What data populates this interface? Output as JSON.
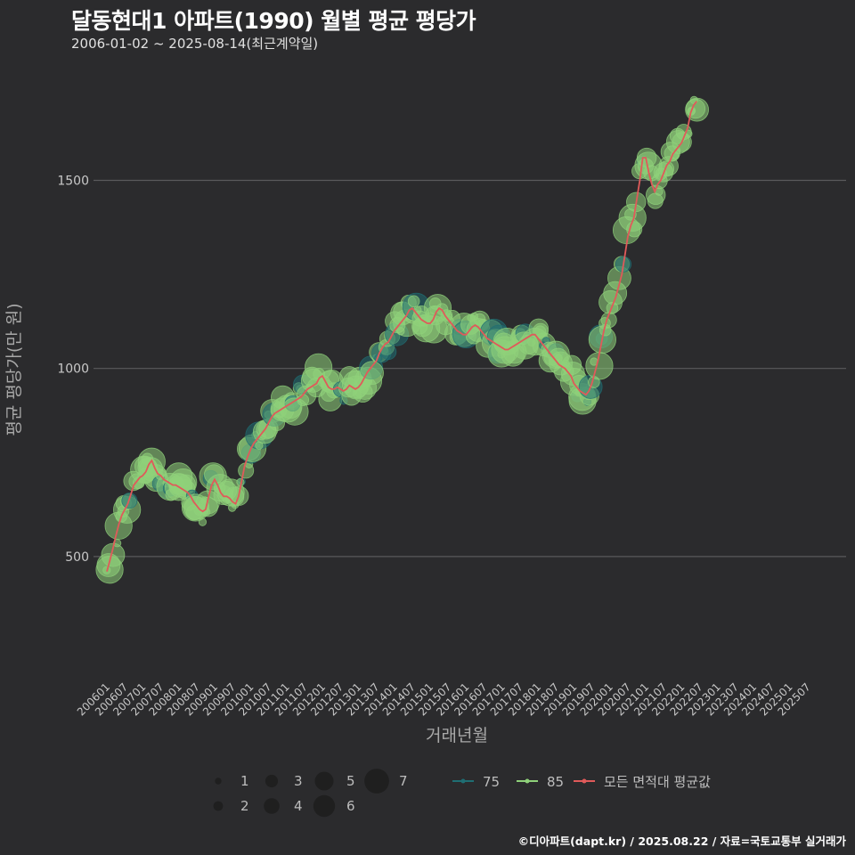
{
  "header": {
    "title": "달동현대1 아파트(1990) 월별 평균 평당가",
    "subtitle": "2006-01-02 ~ 2025-08-14(최근계약일)"
  },
  "footer": {
    "credit": "©디아파트(dapt.kr) / 2025.08.22 / 자료=국토교통부 실거래가"
  },
  "colors": {
    "background": "#2b2b2d",
    "grid": "#5a5a5c",
    "area75": "#1f6e73",
    "area85": "#8fd17a",
    "average": "#e05a5a",
    "text": "#bdbdbd"
  },
  "chart_data": {
    "type": "scatter",
    "title": "달동현대1 아파트(1990) 월별 평균 평당가",
    "xlabel": "거래년월",
    "ylabel": "평균 평당가(만 원)",
    "ylim": [
      180,
      1790
    ],
    "yticks": [
      500,
      1000,
      1500
    ],
    "xticks": [
      "200601",
      "200607",
      "200701",
      "200707",
      "200801",
      "200807",
      "200901",
      "200907",
      "201001",
      "201007",
      "201101",
      "201107",
      "201201",
      "201207",
      "201301",
      "201307",
      "201401",
      "201407",
      "201501",
      "201507",
      "201601",
      "201607",
      "201701",
      "201707",
      "201801",
      "201807",
      "201901",
      "201907",
      "202001",
      "202007",
      "202101",
      "202107",
      "202201",
      "202207",
      "202301",
      "202307",
      "202401",
      "202407",
      "202501",
      "202507"
    ],
    "legend_size": {
      "title": "",
      "values": [
        1,
        2,
        3,
        4,
        5,
        6,
        7
      ]
    },
    "legend_series": [
      {
        "name": "75",
        "color": "#1f6e73"
      },
      {
        "name": "85",
        "color": "#8fd17a"
      },
      {
        "name": "모든 면적대 평균값",
        "color": "#e05a5a"
      }
    ],
    "series": [
      {
        "name": "모든 면적대 평균값",
        "type": "line",
        "points": [
          [
            "200601",
            460
          ],
          [
            "200602",
            490
          ],
          [
            "200603",
            520
          ],
          [
            "200604",
            555
          ],
          [
            "200605",
            585
          ],
          [
            "200606",
            610
          ],
          [
            "200607",
            625
          ],
          [
            "200608",
            640
          ],
          [
            "200609",
            665
          ],
          [
            "200610",
            690
          ],
          [
            "200611",
            700
          ],
          [
            "200612",
            710
          ],
          [
            "200701",
            715
          ],
          [
            "200702",
            725
          ],
          [
            "200703",
            745
          ],
          [
            "200704",
            755
          ],
          [
            "200705",
            735
          ],
          [
            "200706",
            720
          ],
          [
            "200707",
            715
          ],
          [
            "200708",
            705
          ],
          [
            "200709",
            700
          ],
          [
            "200710",
            695
          ],
          [
            "200711",
            690
          ],
          [
            "200712",
            690
          ],
          [
            "200801",
            685
          ],
          [
            "200802",
            680
          ],
          [
            "200803",
            675
          ],
          [
            "200804",
            670
          ],
          [
            "200805",
            660
          ],
          [
            "200806",
            645
          ],
          [
            "200807",
            635
          ],
          [
            "200808",
            625
          ],
          [
            "200809",
            620
          ],
          [
            "200810",
            625
          ],
          [
            "200811",
            660
          ],
          [
            "200812",
            690
          ],
          [
            "200901",
            705
          ],
          [
            "200902",
            690
          ],
          [
            "200903",
            670
          ],
          [
            "200904",
            660
          ],
          [
            "200905",
            660
          ],
          [
            "200906",
            655
          ],
          [
            "200907",
            645
          ],
          [
            "200908",
            640
          ],
          [
            "200909",
            660
          ],
          [
            "200910",
            700
          ],
          [
            "200911",
            740
          ],
          [
            "200912",
            765
          ],
          [
            "201001",
            785
          ],
          [
            "201002",
            800
          ],
          [
            "201003",
            810
          ],
          [
            "201004",
            820
          ],
          [
            "201005",
            830
          ],
          [
            "201006",
            840
          ],
          [
            "201007",
            855
          ],
          [
            "201008",
            870
          ],
          [
            "201009",
            880
          ],
          [
            "201010",
            885
          ],
          [
            "201011",
            890
          ],
          [
            "201012",
            895
          ],
          [
            "201101",
            900
          ],
          [
            "201102",
            905
          ],
          [
            "201103",
            910
          ],
          [
            "201104",
            915
          ],
          [
            "201105",
            920
          ],
          [
            "201106",
            925
          ],
          [
            "201107",
            935
          ],
          [
            "201108",
            945
          ],
          [
            "201109",
            950
          ],
          [
            "201110",
            955
          ],
          [
            "201111",
            960
          ],
          [
            "201112",
            975
          ],
          [
            "201201",
            980
          ],
          [
            "201202",
            965
          ],
          [
            "201203",
            950
          ],
          [
            "201204",
            945
          ],
          [
            "201205",
            945
          ],
          [
            "201206",
            950
          ],
          [
            "201207",
            945
          ],
          [
            "201208",
            940
          ],
          [
            "201209",
            945
          ],
          [
            "201210",
            955
          ],
          [
            "201211",
            950
          ],
          [
            "201212",
            945
          ],
          [
            "201301",
            950
          ],
          [
            "201302",
            960
          ],
          [
            "201303",
            975
          ],
          [
            "201304",
            990
          ],
          [
            "201305",
            1000
          ],
          [
            "201306",
            1010
          ],
          [
            "201307",
            1020
          ],
          [
            "201308",
            1040
          ],
          [
            "201309",
            1055
          ],
          [
            "201310",
            1065
          ],
          [
            "201311",
            1070
          ],
          [
            "201312",
            1085
          ],
          [
            "201401",
            1100
          ],
          [
            "201402",
            1110
          ],
          [
            "201403",
            1120
          ],
          [
            "201404",
            1130
          ],
          [
            "201405",
            1140
          ],
          [
            "201406",
            1155
          ],
          [
            "201407",
            1160
          ],
          [
            "201408",
            1150
          ],
          [
            "201409",
            1140
          ],
          [
            "201410",
            1130
          ],
          [
            "201411",
            1125
          ],
          [
            "201412",
            1120
          ],
          [
            "201501",
            1120
          ],
          [
            "201502",
            1130
          ],
          [
            "201503",
            1150
          ],
          [
            "201504",
            1160
          ],
          [
            "201505",
            1155
          ],
          [
            "201506",
            1140
          ],
          [
            "201507",
            1130
          ],
          [
            "201508",
            1120
          ],
          [
            "201509",
            1110
          ],
          [
            "201510",
            1100
          ],
          [
            "201511",
            1095
          ],
          [
            "201512",
            1090
          ],
          [
            "201601",
            1090
          ],
          [
            "201602",
            1100
          ],
          [
            "201603",
            1110
          ],
          [
            "201604",
            1115
          ],
          [
            "201605",
            1110
          ],
          [
            "201606",
            1100
          ],
          [
            "201607",
            1090
          ],
          [
            "201608",
            1080
          ],
          [
            "201609",
            1075
          ],
          [
            "201610",
            1070
          ],
          [
            "201611",
            1065
          ],
          [
            "201612",
            1060
          ],
          [
            "201701",
            1055
          ],
          [
            "201702",
            1050
          ],
          [
            "201703",
            1050
          ],
          [
            "201704",
            1055
          ],
          [
            "201705",
            1060
          ],
          [
            "201706",
            1065
          ],
          [
            "201707",
            1070
          ],
          [
            "201708",
            1075
          ],
          [
            "201709",
            1080
          ],
          [
            "201710",
            1085
          ],
          [
            "201711",
            1090
          ],
          [
            "201712",
            1090
          ],
          [
            "201801",
            1080
          ],
          [
            "201802",
            1070
          ],
          [
            "201803",
            1060
          ],
          [
            "201804",
            1050
          ],
          [
            "201805",
            1040
          ],
          [
            "201806",
            1030
          ],
          [
            "201807",
            1020
          ],
          [
            "201808",
            1010
          ],
          [
            "201809",
            1005
          ],
          [
            "201810",
            1000
          ],
          [
            "201811",
            990
          ],
          [
            "201812",
            980
          ],
          [
            "201901",
            960
          ],
          [
            "201902",
            950
          ],
          [
            "201903",
            940
          ],
          [
            "201904",
            935
          ],
          [
            "201905",
            930
          ],
          [
            "201906",
            940
          ],
          [
            "201907",
            960
          ],
          [
            "201908",
            990
          ],
          [
            "201909",
            1020
          ],
          [
            "201910",
            1060
          ],
          [
            "201911",
            1100
          ],
          [
            "201912",
            1130
          ],
          [
            "202001",
            1150
          ],
          [
            "202002",
            1170
          ],
          [
            "202003",
            1190
          ],
          [
            "202004",
            1220
          ],
          [
            "202005",
            1250
          ],
          [
            "202006",
            1300
          ],
          [
            "202007",
            1350
          ],
          [
            "202008",
            1380
          ],
          [
            "202009",
            1400
          ],
          [
            "202010",
            1450
          ],
          [
            "202011",
            1500
          ],
          [
            "202012",
            1560
          ],
          [
            "202101",
            1560
          ],
          [
            "202102",
            1520
          ],
          [
            "202103",
            1490
          ],
          [
            "202104",
            1470
          ],
          [
            "202105",
            1490
          ],
          [
            "202106",
            1500
          ],
          [
            "202107",
            1520
          ],
          [
            "202108",
            1540
          ],
          [
            "202109",
            1550
          ],
          [
            "202110",
            1570
          ],
          [
            "202111",
            1580
          ],
          [
            "202112",
            1590
          ],
          [
            "202201",
            1600
          ],
          [
            "202202",
            1620
          ],
          [
            "202203",
            1640
          ],
          [
            "202204",
            1680
          ],
          [
            "202205",
            1700
          ],
          [
            "202206",
            1710
          ]
        ]
      }
    ]
  }
}
